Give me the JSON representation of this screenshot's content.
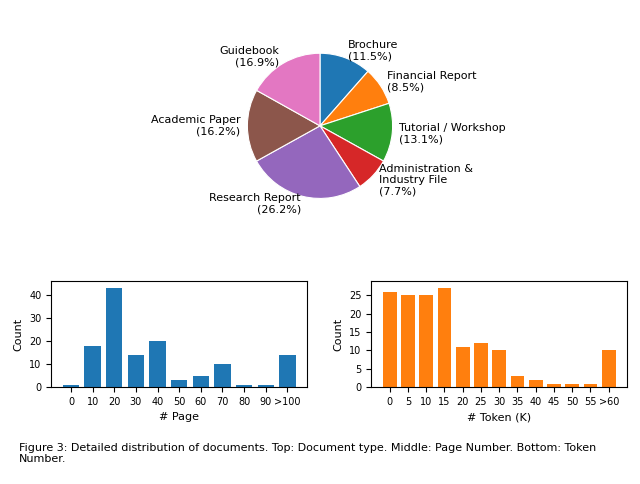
{
  "chart_data": [
    {
      "type": "pie",
      "categories": [
        "Brochure\n(11.5%)",
        "Financial Report\n(8.5%)",
        "Tutorial / Workshop\n(13.1%)",
        "Administration &\nIndustry File\n(7.7%)",
        "Research Report\n(26.2%)",
        "Academic Paper\n(16.2%)",
        "Guidebook\n(16.9%)"
      ],
      "values": [
        11.5,
        8.5,
        13.1,
        7.7,
        26.2,
        16.2,
        16.9
      ]
    },
    {
      "type": "bar",
      "categories": [
        "0",
        "10",
        "20",
        "30",
        "40",
        "50",
        "60",
        "70",
        "80",
        "90",
        ">100"
      ],
      "values": [
        1,
        18,
        43,
        14,
        20,
        3,
        5,
        10,
        1,
        1,
        14
      ],
      "xlabel": "# Page",
      "ylabel": "Count",
      "ylim": [
        0,
        46
      ],
      "yticks": [
        0,
        10,
        20,
        30,
        40
      ]
    },
    {
      "type": "bar",
      "categories": [
        "0",
        "5",
        "10",
        "15",
        "20",
        "25",
        "30",
        "35",
        "40",
        "45",
        "50",
        "55",
        ">60"
      ],
      "values": [
        26,
        25,
        25,
        27,
        11,
        12,
        10,
        3,
        2,
        1,
        1,
        1,
        10
      ],
      "xlabel": "# Token (K)",
      "ylabel": "Count",
      "ylim": [
        0,
        29
      ],
      "yticks": [
        0,
        5,
        10,
        15,
        20,
        25
      ]
    }
  ],
  "caption": "Figure 3: Detailed distribution of documents. Top: Document type. Middle: Page Number. Bottom: Token Number."
}
